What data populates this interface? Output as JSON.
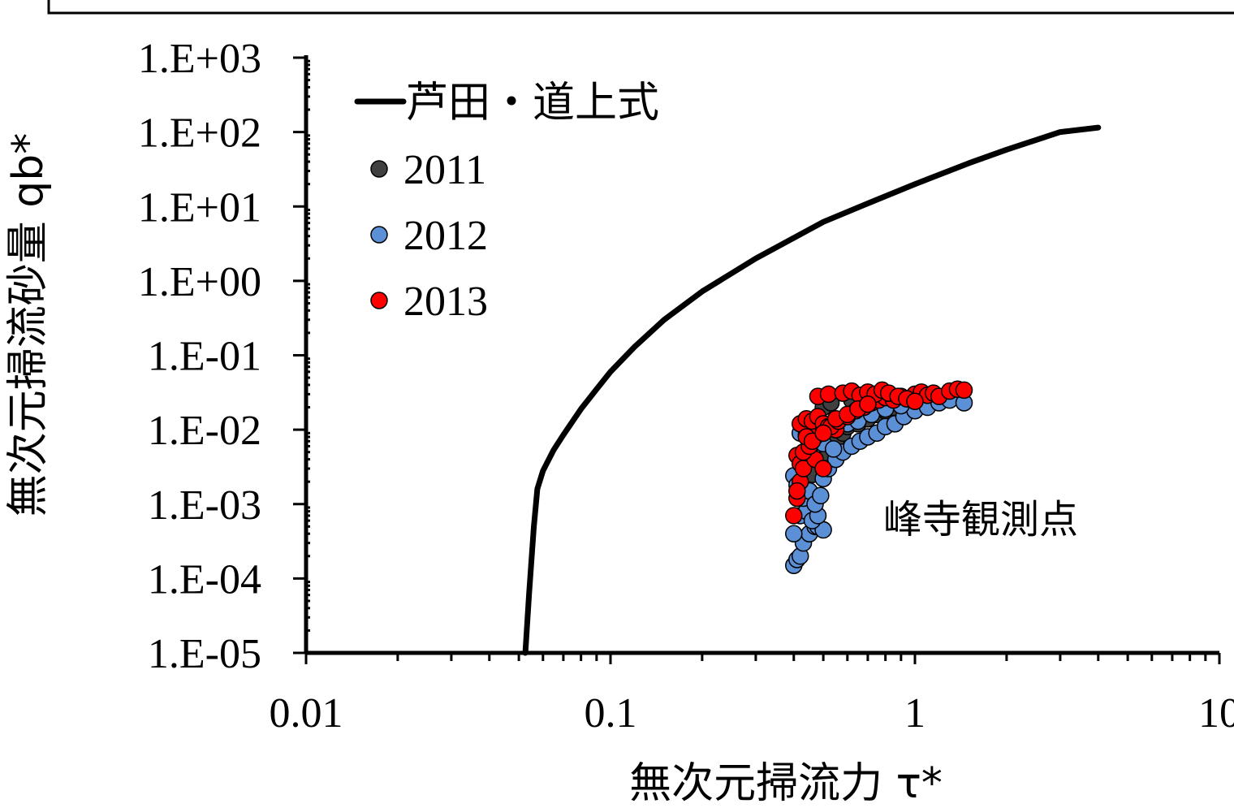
{
  "chart_data": {
    "type": "scatter",
    "xlabel": "無次元掃流力 τ*",
    "ylabel": "無次元掃流砂量 qb*",
    "xscale": "log",
    "yscale": "log",
    "xlim": [
      0.01,
      10
    ],
    "ylim": [
      1e-05,
      1000
    ],
    "x_tick_labels": [
      "0.01",
      "0.1",
      "1",
      "10"
    ],
    "y_tick_labels": [
      "1.E-05",
      "1.E-04",
      "1.E-03",
      "1.E-02",
      "1.E-01",
      "1.E+00",
      "1.E+01",
      "1.E+02",
      "1.E+03"
    ],
    "annotation": "峰寺観測点",
    "legend_position": "top-left",
    "grid": false,
    "colors": {
      "curve": "#000000",
      "2011": "#404040",
      "2012": "#5b8fd6",
      "2013": "#ff0000"
    },
    "curve": {
      "name": "芦田・道上式",
      "x": [
        0.0525,
        0.054,
        0.056,
        0.0575,
        0.06,
        0.065,
        0.07,
        0.08,
        0.09,
        0.1,
        0.12,
        0.15,
        0.2,
        0.3,
        0.5,
        0.7,
        1.0,
        1.5,
        2.0,
        3.0,
        4.0
      ],
      "y": [
        1e-05,
        6e-05,
        0.0005,
        0.0016,
        0.0028,
        0.0053,
        0.0085,
        0.019,
        0.035,
        0.06,
        0.13,
        0.3,
        0.72,
        2.0,
        6.2,
        11.0,
        20.0,
        38.0,
        58.0,
        100.0,
        115.0
      ]
    },
    "series": [
      {
        "name": "2011",
        "x": [
          0.48,
          0.52,
          0.55,
          0.58,
          0.6,
          0.65,
          0.7,
          0.75,
          0.8,
          0.85,
          0.9,
          0.46,
          0.5,
          0.62,
          0.68,
          0.72,
          0.95,
          1.0,
          1.1,
          0.5,
          0.53
        ],
        "y": [
          0.003,
          0.005,
          0.007,
          0.009,
          0.011,
          0.012,
          0.014,
          0.016,
          0.018,
          0.02,
          0.022,
          0.0025,
          0.004,
          0.025,
          0.026,
          0.028,
          0.024,
          0.027,
          0.028,
          0.02,
          0.023
        ]
      },
      {
        "name": "2012",
        "x": [
          0.4,
          0.41,
          0.42,
          0.43,
          0.45,
          0.47,
          0.48,
          0.5,
          0.4,
          0.42,
          0.44,
          0.46,
          0.48,
          0.4,
          0.41,
          0.43,
          0.45,
          0.47,
          0.49,
          0.5,
          0.52,
          0.55,
          0.58,
          0.62,
          0.66,
          0.7,
          0.75,
          0.8,
          0.86,
          0.92,
          1.0,
          1.1,
          1.2,
          1.3,
          1.45,
          0.42,
          0.44,
          0.46,
          0.5,
          0.54,
          0.6,
          0.65,
          0.72,
          0.8,
          0.9
        ],
        "y": [
          0.00015,
          0.00018,
          0.0002,
          0.0003,
          0.0004,
          0.0005,
          0.0005,
          0.00045,
          0.0004,
          0.0007,
          0.0008,
          0.0006,
          0.0007,
          0.0024,
          0.0018,
          0.0012,
          0.0015,
          0.001,
          0.0013,
          0.0022,
          0.003,
          0.004,
          0.005,
          0.006,
          0.007,
          0.008,
          0.009,
          0.011,
          0.012,
          0.015,
          0.018,
          0.02,
          0.023,
          0.025,
          0.023,
          0.009,
          0.0085,
          0.0075,
          0.0065,
          0.0055,
          0.012,
          0.013,
          0.016,
          0.019,
          0.021
        ]
      },
      {
        "name": "2013",
        "x": [
          0.4,
          0.41,
          0.42,
          0.41,
          0.42,
          0.43,
          0.45,
          0.47,
          0.5,
          0.42,
          0.44,
          0.46,
          0.48,
          0.5,
          0.52,
          0.55,
          0.41,
          0.43,
          0.45,
          0.47,
          0.5,
          0.53,
          0.56,
          0.6,
          0.64,
          0.68,
          0.72,
          0.76,
          0.8,
          0.85,
          0.9,
          0.95,
          1.0,
          1.05,
          1.1,
          1.15,
          1.2,
          1.3,
          1.38,
          1.45,
          0.48,
          0.52,
          0.58,
          0.62,
          0.66,
          0.7,
          0.74,
          0.78,
          0.82,
          0.88,
          0.94,
          1.0,
          0.44,
          0.46,
          0.5,
          0.55,
          0.6,
          0.65,
          0.7
        ],
        "y": [
          0.0007,
          0.0012,
          0.002,
          0.0045,
          0.0035,
          0.003,
          0.005,
          0.004,
          0.003,
          0.012,
          0.014,
          0.013,
          0.015,
          0.012,
          0.011,
          0.01,
          0.0015,
          0.005,
          0.006,
          0.008,
          0.009,
          0.011,
          0.013,
          0.015,
          0.018,
          0.02,
          0.023,
          0.025,
          0.027,
          0.025,
          0.028,
          0.026,
          0.03,
          0.032,
          0.029,
          0.031,
          0.028,
          0.033,
          0.035,
          0.034,
          0.028,
          0.03,
          0.031,
          0.033,
          0.029,
          0.032,
          0.03,
          0.034,
          0.031,
          0.028,
          0.026,
          0.024,
          0.008,
          0.007,
          0.009,
          0.014,
          0.016,
          0.019,
          0.022
        ]
      }
    ]
  }
}
